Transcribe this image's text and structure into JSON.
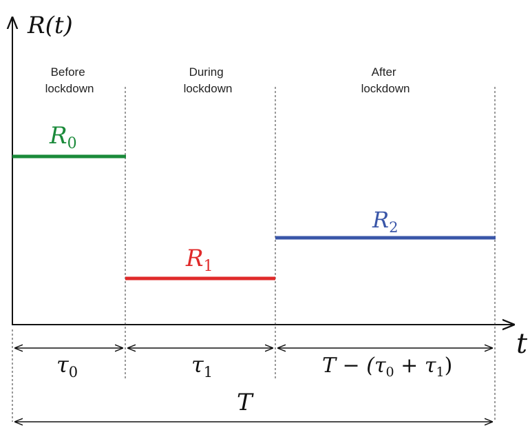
{
  "axes": {
    "y_label": "R(t)",
    "x_label": "t"
  },
  "phases": [
    {
      "line1": "Before",
      "line2": "lockdown"
    },
    {
      "line1": "During",
      "line2": "lockdown"
    },
    {
      "line1": "After",
      "line2": "lockdown"
    }
  ],
  "levels": [
    {
      "symbol": "R",
      "sub": "0",
      "color": "#1a8a3a"
    },
    {
      "symbol": "R",
      "sub": "1",
      "color": "#e02a2a"
    },
    {
      "symbol": "R",
      "sub": "2",
      "color": "#3a56a8"
    }
  ],
  "durations": [
    {
      "symbol": "τ",
      "sub": "0"
    },
    {
      "symbol": "τ",
      "sub": "1"
    },
    {
      "pre": "T − (",
      "s1": "τ",
      "sub1": "0",
      "mid": " + ",
      "s2": "τ",
      "sub2": "1",
      "post": ")"
    }
  ],
  "total": {
    "symbol": "T"
  }
}
